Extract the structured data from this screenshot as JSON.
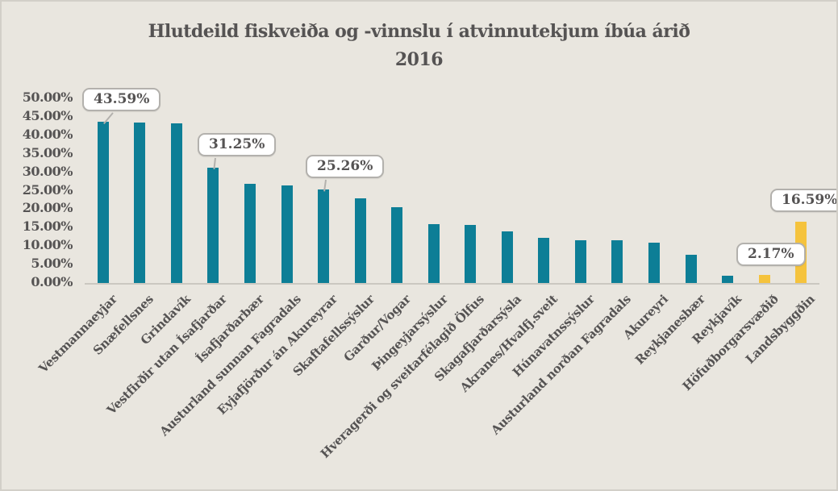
{
  "header": {
    "line1": "Hlutdeild fiskveiða og -vinnslu í atvinnutekjum íbúa árið",
    "line2": "2016"
  },
  "chart_data": {
    "type": "bar",
    "title": "Hlutdeild fiskveiða og -vinnslu í atvinnutekjum íbúa árið 2016",
    "xlabel": "",
    "ylabel": "",
    "ylim": [
      0,
      50
    ],
    "grid": false,
    "legend": false,
    "categories": [
      "Vestmannaeyjar",
      "Snæfellsnes",
      "Grindavík",
      "Vestfirðir utan Ísafjarðar",
      "Ísafjarðarbær",
      "Austurland sunnan Fagradals",
      "Eyjafjörður án Akureyrar",
      "Skaftafellssýslur",
      "Garður/Vogar",
      "Þingeyjarsýslur",
      "Hveragerði og sveitarfélagið Ölfus",
      "Skagafjarðarsýsla",
      "Akranes/Hvalfj.sveit",
      "Húnavatnssýslur",
      "Austurland norðan Fagradals",
      "Akureyri",
      "Reykjanesbær",
      "Reykjavík",
      "Höfuðborgarsvæðið",
      "Landsbyggðin"
    ],
    "values": [
      43.59,
      43.4,
      43.2,
      31.25,
      26.9,
      26.4,
      25.26,
      23.0,
      20.6,
      16.0,
      15.7,
      13.9,
      12.2,
      11.5,
      11.5,
      10.9,
      7.6,
      1.9,
      2.17,
      16.59
    ],
    "data_labels": [
      {
        "index": 0,
        "text": "43.59%"
      },
      {
        "index": 3,
        "text": "31.25%"
      },
      {
        "index": 6,
        "text": "25.26%"
      },
      {
        "index": 18,
        "text": "2.17%"
      },
      {
        "index": 19,
        "text": "16.59%"
      }
    ],
    "yticks": [
      "50.00%",
      "45.00%",
      "40.00%",
      "35.00%",
      "30.00%",
      "25.00%",
      "20.00%",
      "15.00%",
      "10.00%",
      "5.00%",
      "0.00%"
    ],
    "colors": {
      "bar_default": "#0d7e96",
      "bar_highlight": "#f5c33d",
      "highlight_indices": [
        18,
        19
      ],
      "background": "#e9e6df",
      "text": "#555353",
      "axis_line": "#cbc8c1",
      "callout_border": "#b3b1ad",
      "callout_background": "#ffffff"
    }
  }
}
